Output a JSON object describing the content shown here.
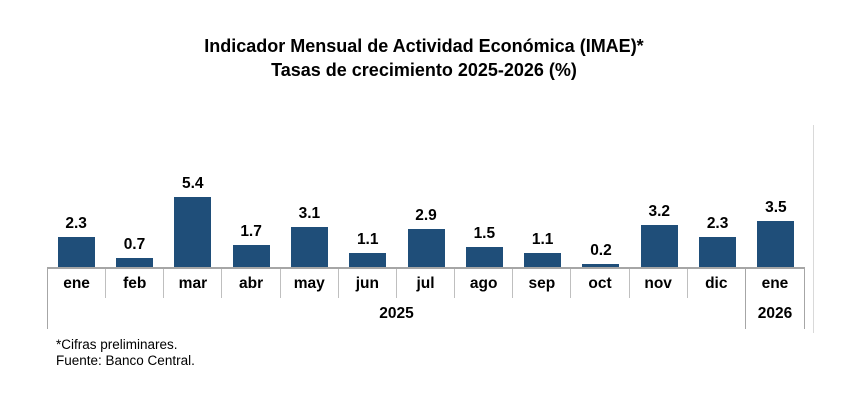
{
  "chart_data": {
    "type": "bar",
    "title": "Indicador Mensual de Actividad Económica (IMAE)*",
    "subtitle": "Tasas de crecimiento 2025-2026 (%)",
    "value_axis_visible": false,
    "gridlines": false,
    "legend": "none",
    "ylim": [
      0,
      8
    ],
    "groups": [
      {
        "year": "2025",
        "categories": [
          "ene",
          "feb",
          "mar",
          "abr",
          "may",
          "jun",
          "jul",
          "ago",
          "sep",
          "oct",
          "nov",
          "dic"
        ],
        "values": [
          2.3,
          0.7,
          5.4,
          1.7,
          3.1,
          1.1,
          2.9,
          1.5,
          1.1,
          0.2,
          3.2,
          2.3
        ]
      },
      {
        "year": "2026",
        "categories": [
          "ene"
        ],
        "values": [
          3.5
        ]
      }
    ],
    "colors": {
      "bar": "#1F4E79",
      "axis_line": "#A6A6A6",
      "month_separator": "#BFBFBF",
      "plot_border_right": "#D9D9D9",
      "text": "#000000"
    }
  },
  "footer": {
    "note": "*Cifras preliminares.",
    "source": "Fuente: Banco Central."
  }
}
